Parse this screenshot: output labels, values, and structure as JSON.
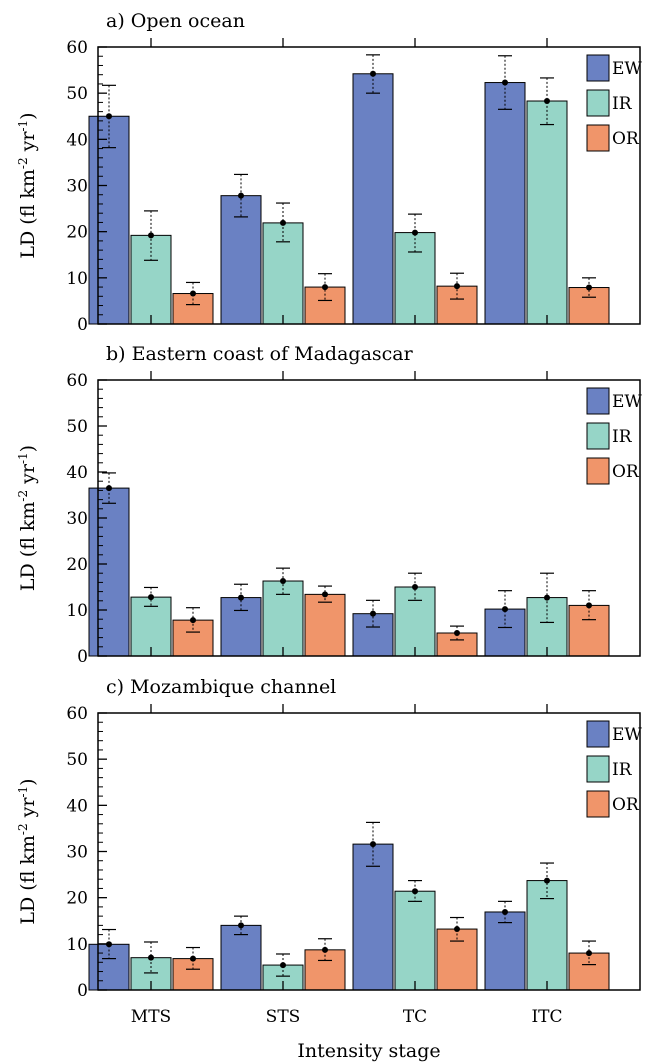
{
  "figure": {
    "xlabel": "Intensity stage"
  },
  "colors": {
    "EW": "#6a81c3",
    "IR": "#96d5c7",
    "OR": "#f0956a"
  },
  "chart_data": [
    {
      "type": "bar",
      "title": "a) Open ocean",
      "ylabel": "LD (fl km-2 yr-1)",
      "ylabel_parts": {
        "base": "LD (fl km",
        "sup1": "-2",
        "mid": " yr",
        "sup2": "-1",
        "end": ")"
      },
      "ylim": [
        0,
        60
      ],
      "yticks": [
        0,
        10,
        20,
        30,
        40,
        50,
        60
      ],
      "categories": [
        "MTS",
        "STS",
        "TC",
        "ITC"
      ],
      "legend": "top-right",
      "series": [
        {
          "name": "EW",
          "values": [
            45.0,
            27.8,
            54.2,
            52.3
          ],
          "err_low": [
            38.2,
            23.2,
            50.0,
            46.5
          ],
          "err_high": [
            51.7,
            32.4,
            58.3,
            58.1
          ]
        },
        {
          "name": "IR",
          "values": [
            19.2,
            21.9,
            19.8,
            48.3
          ],
          "err_low": [
            13.8,
            17.8,
            15.6,
            43.2
          ],
          "err_high": [
            24.5,
            26.2,
            23.8,
            53.3
          ]
        },
        {
          "name": "OR",
          "values": [
            6.6,
            8.0,
            8.2,
            7.9
          ],
          "err_low": [
            4.2,
            5.1,
            5.4,
            5.8
          ],
          "err_high": [
            9.0,
            10.9,
            11.0,
            10.0
          ]
        }
      ]
    },
    {
      "type": "bar",
      "title": "b) Eastern coast of Madagascar",
      "ylabel": "LD (fl km-2 yr-1)",
      "ylabel_parts": {
        "base": "LD (fl km",
        "sup1": "-2",
        "mid": " yr",
        "sup2": "-1",
        "end": ")"
      },
      "ylim": [
        0,
        60
      ],
      "yticks": [
        0,
        10,
        20,
        30,
        40,
        50,
        60
      ],
      "categories": [
        "MTS",
        "STS",
        "TC",
        "ITC"
      ],
      "legend": "top-right",
      "series": [
        {
          "name": "EW",
          "values": [
            36.5,
            12.7,
            9.2,
            10.2
          ],
          "err_low": [
            33.2,
            9.9,
            6.3,
            6.2
          ],
          "err_high": [
            39.8,
            15.6,
            12.1,
            14.2
          ]
        },
        {
          "name": "IR",
          "values": [
            12.8,
            16.3,
            15.0,
            12.7
          ],
          "err_low": [
            10.8,
            13.4,
            12.1,
            7.3
          ],
          "err_high": [
            14.9,
            19.1,
            18.0,
            18.0
          ]
        },
        {
          "name": "OR",
          "values": [
            7.8,
            13.4,
            5.0,
            11.0
          ],
          "err_low": [
            5.2,
            11.7,
            3.5,
            7.9
          ],
          "err_high": [
            10.5,
            15.2,
            6.5,
            14.2
          ]
        }
      ]
    },
    {
      "type": "bar",
      "title": "c) Mozambique channel",
      "ylabel": "LD (fl km-2 yr-1)",
      "ylabel_parts": {
        "base": "LD (fl km",
        "sup1": "-2",
        "mid": " yr",
        "sup2": "-1",
        "end": ")"
      },
      "ylim": [
        0,
        60
      ],
      "yticks": [
        0,
        10,
        20,
        30,
        40,
        50,
        60
      ],
      "categories": [
        "MTS",
        "STS",
        "TC",
        "ITC"
      ],
      "legend": "top-right",
      "series": [
        {
          "name": "EW",
          "values": [
            9.9,
            14.0,
            31.6,
            16.9
          ],
          "err_low": [
            6.8,
            12.0,
            26.8,
            14.6
          ],
          "err_high": [
            13.1,
            16.0,
            36.3,
            19.2
          ]
        },
        {
          "name": "IR",
          "values": [
            7.0,
            5.4,
            21.4,
            23.7
          ],
          "err_low": [
            3.7,
            3.0,
            19.2,
            19.8
          ],
          "err_high": [
            10.4,
            7.8,
            23.7,
            27.5
          ]
        },
        {
          "name": "OR",
          "values": [
            6.8,
            8.7,
            13.2,
            8.0
          ],
          "err_low": [
            4.5,
            6.4,
            10.6,
            5.5
          ],
          "err_high": [
            9.2,
            11.1,
            15.7,
            10.6
          ]
        }
      ]
    }
  ]
}
